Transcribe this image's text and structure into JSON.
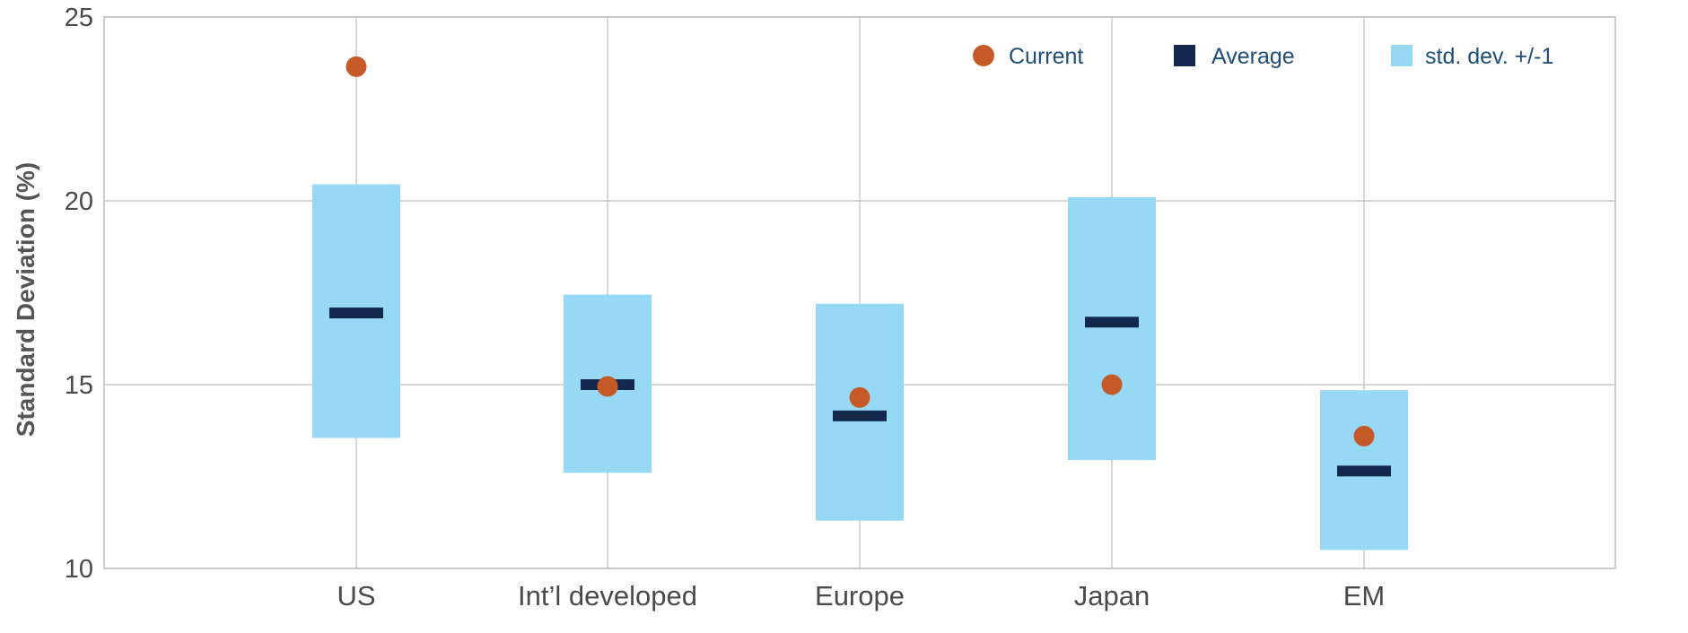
{
  "chart_data": {
    "type": "range-dot",
    "title": "",
    "xlabel": "",
    "ylabel": "Standard Deviation (%)",
    "ylim": [
      10,
      25
    ],
    "yticks": [
      10,
      15,
      20,
      25
    ],
    "grid": true,
    "legend_position": "top-right",
    "categories": [
      "US",
      "Int’l developed",
      "Europe",
      "Japan",
      "EM"
    ],
    "series": [
      {
        "name": "Current",
        "kind": "dot",
        "color": "#c55a28",
        "values": [
          23.65,
          14.95,
          14.65,
          15.0,
          13.6
        ]
      },
      {
        "name": "Average",
        "kind": "bar-marker",
        "color": "#12284c",
        "values": [
          16.95,
          15.0,
          14.15,
          16.7,
          12.65
        ]
      },
      {
        "name": "std. dev. +/-1",
        "kind": "range",
        "color": "#97d8f5",
        "low": [
          13.55,
          12.6,
          11.3,
          12.95,
          10.5
        ],
        "high": [
          20.45,
          17.45,
          17.2,
          20.1,
          14.85
        ]
      }
    ]
  },
  "legend": {
    "current": "Current",
    "average": "Average",
    "stddev": "std. dev. +/-1"
  },
  "colors": {
    "current": "#c55a28",
    "average": "#12284c",
    "range": "#97d8f5",
    "grid": "#bdbdbd",
    "legend_text": "#1f4e79"
  }
}
